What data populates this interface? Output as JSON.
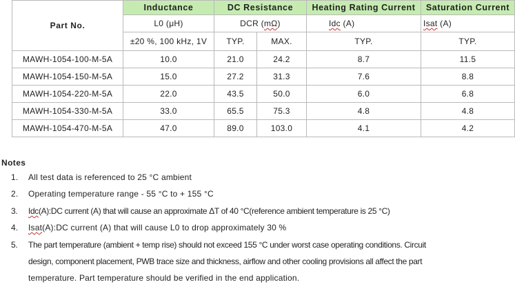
{
  "table": {
    "part_no_header": "Part No.",
    "groups": {
      "inductance": "Inductance",
      "dc_resistance": "DC Resistance",
      "heating_rating_current": "Heating Rating Current",
      "saturation_current": "Saturation Current"
    },
    "symbols": {
      "inductance": "L0 (μH)",
      "dcr_prefix": "DCR (",
      "dcr_unit": "mΩ",
      "dcr_suffix": ")",
      "idc_prefix": "",
      "idc_sym": "Idc",
      "idc_suffix": " (A)",
      "isat_sym": "Isat",
      "isat_suffix": " (A)"
    },
    "conditions": {
      "inductance": "±20 %, 100 kHz, 1V",
      "dcr_typ": "TYP.",
      "dcr_max": "MAX.",
      "idc_typ": "TYP.",
      "isat_typ": "TYP."
    },
    "rows": [
      {
        "part": "MAWH-1054-100-M-5A",
        "l0": "10.0",
        "dcr_typ": "21.0",
        "dcr_max": "24.2",
        "idc": "8.7",
        "isat": "11.5"
      },
      {
        "part": "MAWH-1054-150-M-5A",
        "l0": "15.0",
        "dcr_typ": "27.2",
        "dcr_max": "31.3",
        "idc": "7.6",
        "isat": "8.8"
      },
      {
        "part": "MAWH-1054-220-M-5A",
        "l0": "22.0",
        "dcr_typ": "43.5",
        "dcr_max": "50.0",
        "idc": "6.0",
        "isat": "6.8"
      },
      {
        "part": "MAWH-1054-330-M-5A",
        "l0": "33.0",
        "dcr_typ": "65.5",
        "dcr_max": "75.3",
        "idc": "4.8",
        "isat": "4.8"
      },
      {
        "part": "MAWH-1054-470-M-5A",
        "l0": "47.0",
        "dcr_typ": "89.0",
        "dcr_max": "103.0",
        "idc": "4.1",
        "isat": "4.2"
      }
    ]
  },
  "notes": {
    "title": "Notes",
    "items": [
      {
        "num": "1.",
        "text": "All test data is referenced to 25 °C ambient"
      },
      {
        "num": "2.",
        "text": "Operating temperature range - 55 °C to + 155 °C"
      },
      {
        "num": "3.",
        "sym": "Idc",
        "text": "(A):DC current (A) that will cause an approximate ΔT of 40 °C(reference ambient temperature is 25 °C)"
      },
      {
        "num": "4.",
        "sym": "Isat",
        "text": "(A):DC current (A) that will cause L0 to drop approximately 30 %"
      },
      {
        "num": "5.",
        "lines": [
          "The part temperature (ambient + temp rise) should not exceed 155 °C under worst case operating conditions. Circuit",
          "design, component placement, PWB trace size and thickness, airflow and other cooling provisions all affect the part",
          "temperature. Part temperature should be verified in the end application."
        ]
      }
    ]
  }
}
